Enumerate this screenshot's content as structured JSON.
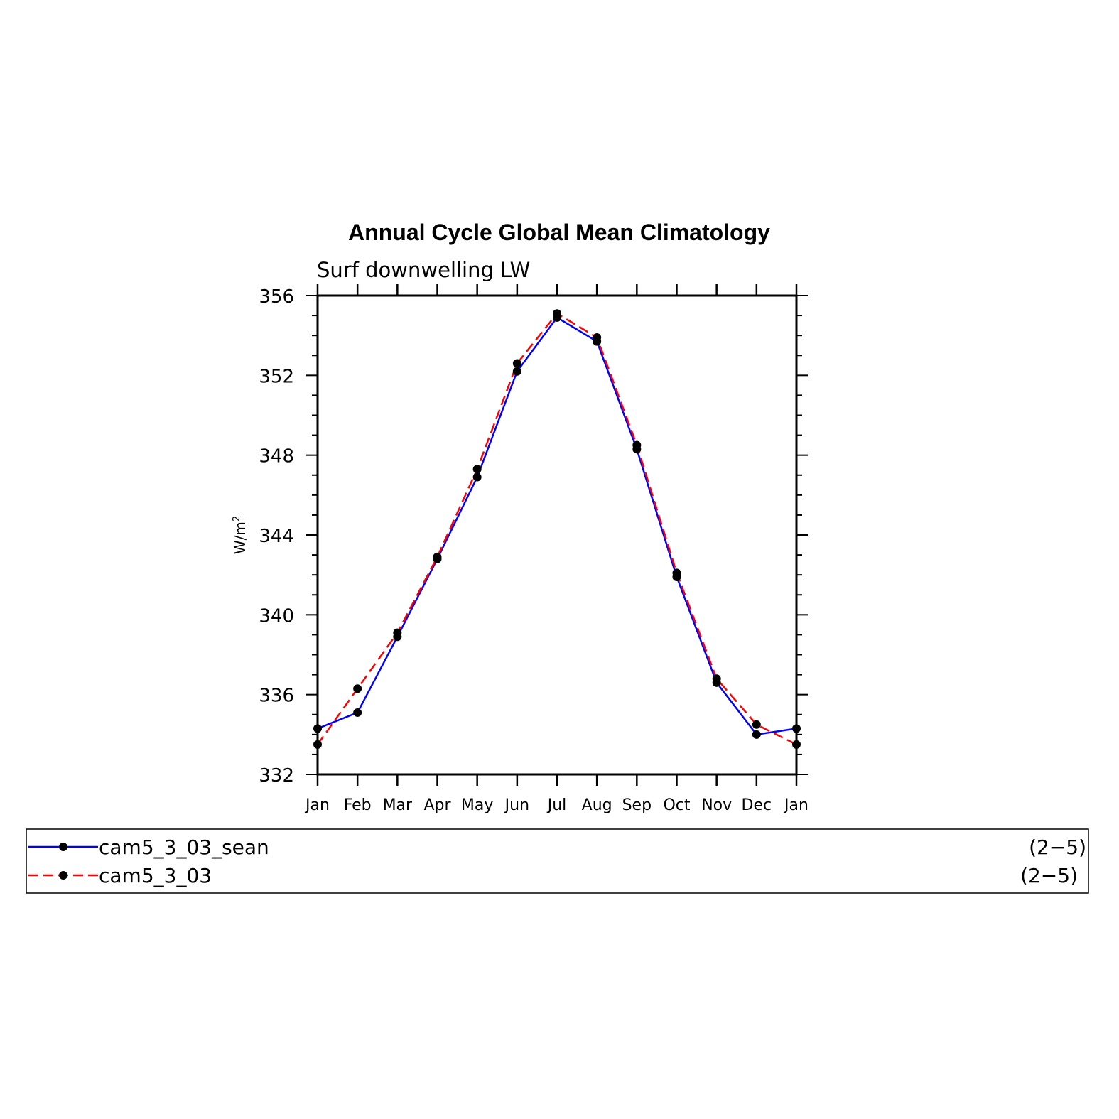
{
  "chart_data": {
    "type": "line",
    "title": "Annual Cycle Global Mean Climatology",
    "subtitle": "Surf downwelling LW",
    "ylabel_base": "W/m",
    "ylabel_sup": "2",
    "xlabel": "",
    "categories": [
      "Jan",
      "Feb",
      "Mar",
      "Apr",
      "May",
      "Jun",
      "Jul",
      "Aug",
      "Sep",
      "Oct",
      "Nov",
      "Dec",
      "Jan"
    ],
    "ylim": [
      332,
      356
    ],
    "yticks": [
      332,
      336,
      340,
      344,
      348,
      352,
      356
    ],
    "grid": false,
    "legend_position": "bottom",
    "series": [
      {
        "name": "cam5_3_03_sean",
        "range_label": "(2−5)",
        "color": "#0000ff",
        "dash": "solid",
        "values": [
          334.3,
          335.1,
          338.9,
          342.8,
          346.9,
          352.2,
          354.9,
          353.7,
          348.3,
          341.9,
          336.6,
          334.0,
          334.3
        ]
      },
      {
        "name": "cam5_3_03",
        "range_label": "(2−5)",
        "color": "#ff0000",
        "dash": "dashed",
        "values": [
          333.5,
          336.3,
          339.1,
          342.9,
          347.3,
          352.6,
          355.1,
          353.9,
          348.5,
          342.1,
          336.8,
          334.5,
          333.5
        ]
      }
    ]
  }
}
